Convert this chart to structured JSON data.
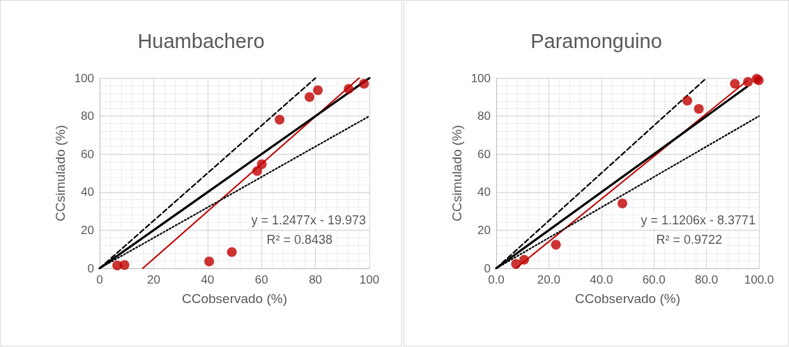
{
  "chart_data": [
    {
      "type": "scatter",
      "title": "Huambachero",
      "xlabel": "CCobservado (%)",
      "ylabel": "CCsimulado (%)",
      "xlim": [
        0,
        100
      ],
      "ylim": [
        0,
        100
      ],
      "xticks": [
        0,
        20,
        40,
        60,
        80,
        100
      ],
      "yticks": [
        0,
        20,
        40,
        60,
        80,
        100
      ],
      "grid": true,
      "marker": "circle",
      "annotations": [
        "y = 1.2477x - 19.973",
        "R² = 0.8438"
      ],
      "series": [
        {
          "color": "#c00000",
          "x": [
            6.5,
            9.2,
            40.6,
            49.0,
            58.4,
            60.1,
            66.7,
            77.8,
            80.9,
            92.3,
            98.0
          ],
          "values": [
            1.5,
            1.7,
            3.6,
            8.5,
            51.1,
            54.7,
            78.1,
            90.0,
            93.6,
            94.3,
            97.0
          ]
        },
        {
          "type": "line",
          "color": "#c00000",
          "marker": "none",
          "line_style": "solid",
          "x": [
            16,
            96.2
          ],
          "values": [
            0,
            100
          ]
        },
        {
          "type": "line",
          "color": "#000000",
          "marker": "none",
          "line_style": "solid",
          "x": [
            0,
            100
          ],
          "values": [
            0,
            100
          ]
        },
        {
          "type": "line",
          "color": "#000000",
          "marker": "none",
          "line_style": "dashed",
          "x": [
            0,
            80
          ],
          "values": [
            0,
            100
          ]
        },
        {
          "type": "line",
          "color": "#000000",
          "marker": "none",
          "line_style": "dotted",
          "x": [
            0,
            100
          ],
          "values": [
            0,
            80
          ]
        }
      ]
    },
    {
      "type": "scatter",
      "title": "Paramonguino",
      "xlabel": "CCobservado (%)",
      "ylabel": "CCsimulado (%)",
      "xlim": [
        0,
        100
      ],
      "ylim": [
        0,
        100
      ],
      "xticks": [
        {
          "value": 0,
          "label": "0.0"
        },
        {
          "value": 20,
          "label": "20.0"
        },
        {
          "value": 40,
          "label": "40.0"
        },
        {
          "value": 60,
          "label": "60.0"
        },
        {
          "value": 80,
          "label": "80.0"
        },
        {
          "value": 100,
          "label": "100.0"
        }
      ],
      "yticks": [
        0,
        20,
        40,
        60,
        80,
        100
      ],
      "grid": true,
      "marker": "circle",
      "annotations": [
        "y = 1.1206x - 8.3771",
        "R² = 0.9722"
      ],
      "series": [
        {
          "color": "#c00000",
          "x": [
            7.5,
            10.6,
            22.7,
            48.0,
            72.7,
            77.1,
            90.8,
            95.8,
            99.1,
            99.9
          ],
          "values": [
            2.3,
            4.5,
            12.4,
            34.1,
            88.1,
            83.8,
            97.0,
            98.0,
            99.6,
            98.8
          ]
        },
        {
          "type": "line",
          "color": "#c00000",
          "marker": "none",
          "line_style": "solid",
          "x": [
            7.5,
            95.4
          ],
          "values": [
            0,
            98.5
          ]
        },
        {
          "type": "line",
          "color": "#000000",
          "marker": "none",
          "line_style": "solid",
          "x": [
            0,
            95.4
          ],
          "values": [
            0,
            95.4
          ]
        },
        {
          "type": "line",
          "color": "#000000",
          "marker": "none",
          "line_style": "dashed",
          "x": [
            0,
            80
          ],
          "values": [
            0,
            100
          ]
        },
        {
          "type": "line",
          "color": "#000000",
          "marker": "none",
          "line_style": "dotted",
          "x": [
            0,
            100
          ],
          "values": [
            0,
            80
          ]
        }
      ]
    }
  ]
}
